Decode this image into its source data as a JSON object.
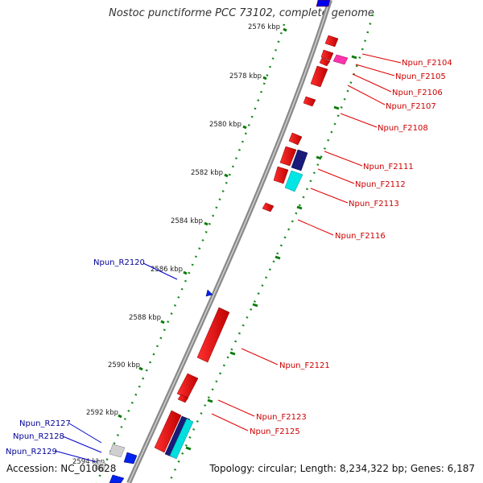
{
  "title": "Nostoc punctiforme PCC 73102, complete genome",
  "footer": {
    "accession": "Accession: NC_010628",
    "topology": "Topology: circular; Length: 8,234,322 bp; Genes: 6,187"
  },
  "colors": {
    "forward_label": "#cc0000",
    "reverse_label": "#000099",
    "tick": "#008800",
    "backbone": "#888888"
  },
  "kbp_labels": [
    "2576 kbp",
    "2578 kbp",
    "2580 kbp",
    "2582 kbp",
    "2584 kbp",
    "2586 kbp",
    "2588 kbp",
    "2590 kbp",
    "2592 kbp",
    "2594 kbp"
  ],
  "forward_genes": [
    "Npun_F2104",
    "Npun_F2105",
    "Npun_F2106",
    "Npun_F2107",
    "Npun_F2108",
    "Npun_F2111",
    "Npun_F2112",
    "Npun_F2113",
    "Npun_F2116",
    "Npun_F2121",
    "Npun_F2123",
    "Npun_F2125"
  ],
  "reverse_genes": [
    "Npun_R2120",
    "Npun_R2127",
    "Npun_R2128",
    "Npun_R2129"
  ]
}
